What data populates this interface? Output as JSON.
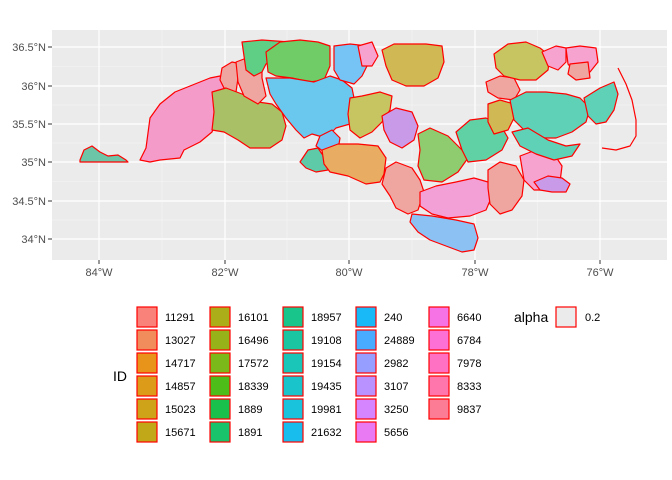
{
  "chart_data": {
    "type": "map",
    "title": "",
    "xlabel": "",
    "ylabel": "",
    "x_ticks": [
      "84°W",
      "82°W",
      "80°W",
      "78°W",
      "76°W"
    ],
    "y_ticks": [
      "36.5°N",
      "36°N",
      "35.5°N",
      "35°N",
      "34.5°N",
      "34°N"
    ],
    "xlim": [
      -84.8,
      -74.9
    ],
    "ylim": [
      33.7,
      36.65
    ],
    "grid": true,
    "border_color": "#ff0000",
    "legend": {
      "position": "bottom",
      "id_title": "ID",
      "alpha_title": "alpha",
      "alpha_value": "0.2",
      "id_entries": [
        {
          "label": "11291",
          "color": "#f8766d"
        },
        {
          "label": "13027",
          "color": "#f07f4b"
        },
        {
          "label": "14717",
          "color": "#e58700"
        },
        {
          "label": "14857",
          "color": "#d89000"
        },
        {
          "label": "15023",
          "color": "#c99800"
        },
        {
          "label": "15671",
          "color": "#b99f00"
        },
        {
          "label": "16101",
          "color": "#a3a500"
        },
        {
          "label": "16496",
          "color": "#8bab00"
        },
        {
          "label": "17572",
          "color": "#6bb100"
        },
        {
          "label": "18339",
          "color": "#39b600"
        },
        {
          "label": "1889",
          "color": "#00ba38"
        },
        {
          "label": "1891",
          "color": "#00bd5c"
        },
        {
          "label": "18957",
          "color": "#00bf7d"
        },
        {
          "label": "19108",
          "color": "#00c097"
        },
        {
          "label": "19154",
          "color": "#00c0af"
        },
        {
          "label": "19435",
          "color": "#00bfc4"
        },
        {
          "label": "19981",
          "color": "#00bcd8"
        },
        {
          "label": "21632",
          "color": "#00b6eb"
        },
        {
          "label": "240",
          "color": "#00b0f6"
        },
        {
          "label": "24889",
          "color": "#35a2ff"
        },
        {
          "label": "2982",
          "color": "#8b93ff"
        },
        {
          "label": "3107",
          "color": "#b186ff"
        },
        {
          "label": "3250",
          "color": "#d078ff"
        },
        {
          "label": "5656",
          "color": "#e76bf3"
        },
        {
          "label": "6640",
          "color": "#f564e3"
        },
        {
          "label": "6784",
          "color": "#fd61d1"
        },
        {
          "label": "7978",
          "color": "#ff62bc"
        },
        {
          "label": "8333",
          "color": "#ff67a4"
        },
        {
          "label": "9837",
          "color": "#fc6e8a"
        }
      ]
    }
  }
}
